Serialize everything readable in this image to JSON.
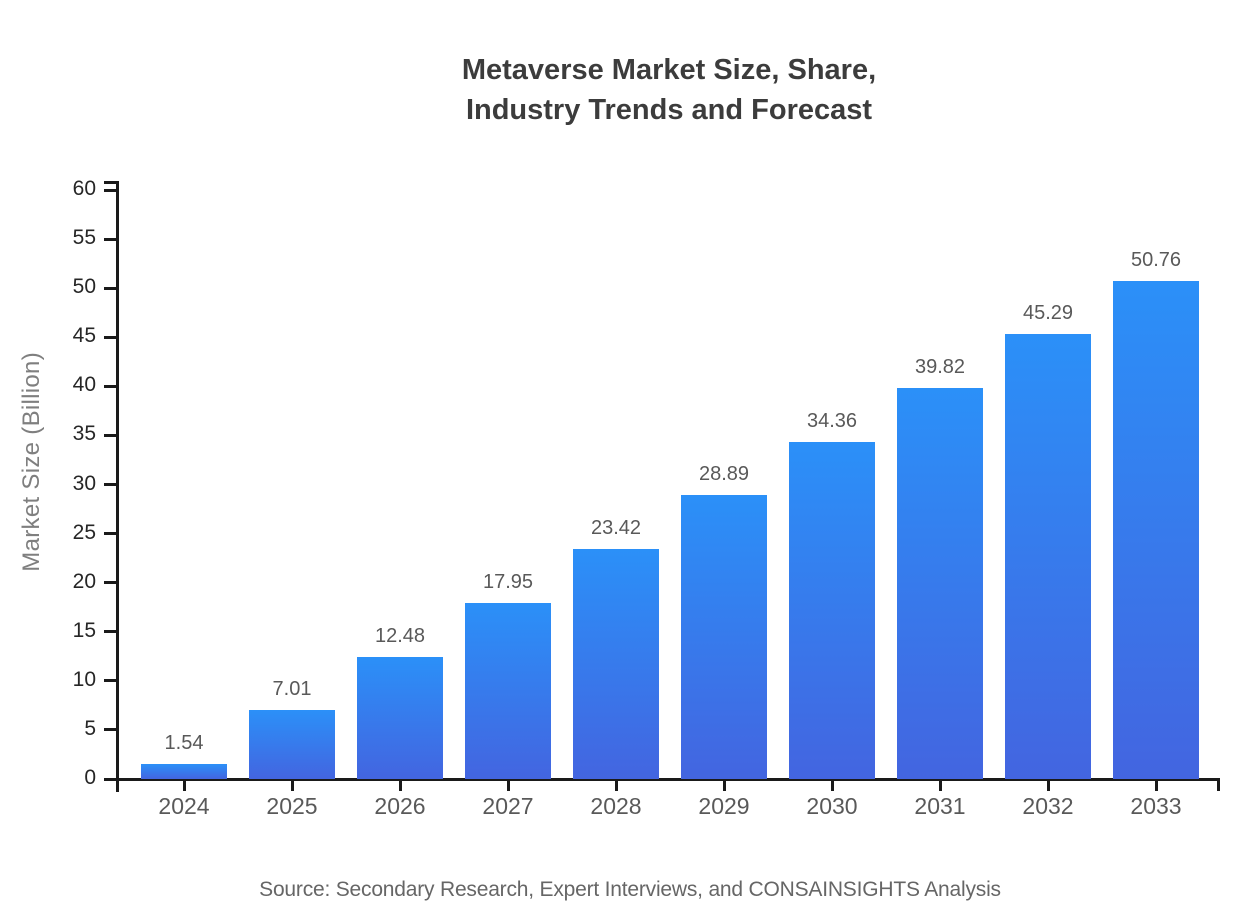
{
  "chart_data": {
    "type": "bar",
    "title": "Metaverse Market Size, Share,\nIndustry Trends and Forecast",
    "categories": [
      "2024",
      "2025",
      "2026",
      "2027",
      "2028",
      "2029",
      "2030",
      "2031",
      "2032",
      "2033"
    ],
    "values": [
      1.54,
      7.01,
      12.48,
      17.95,
      23.42,
      28.89,
      34.36,
      39.82,
      45.29,
      50.76
    ],
    "value_labels": [
      "1.54",
      "7.01",
      "12.48",
      "17.95",
      "23.42",
      "28.89",
      "34.36",
      "39.82",
      "45.29",
      "50.76"
    ],
    "xlabel": "",
    "ylabel": "Market Size (Billion)",
    "ylim": [
      0,
      60
    ],
    "yticks": [
      0,
      5,
      10,
      15,
      20,
      25,
      30,
      35,
      40,
      45,
      50,
      55,
      60
    ],
    "grid": false,
    "legend_position": "none",
    "bar_color_top": "#2B90F8",
    "bar_color_bottom": "#4365E0",
    "axis_color": "#1a1a1a",
    "source": "Source: Secondary Research, Expert Interviews, and CONSAINSIGHTS Analysis"
  }
}
